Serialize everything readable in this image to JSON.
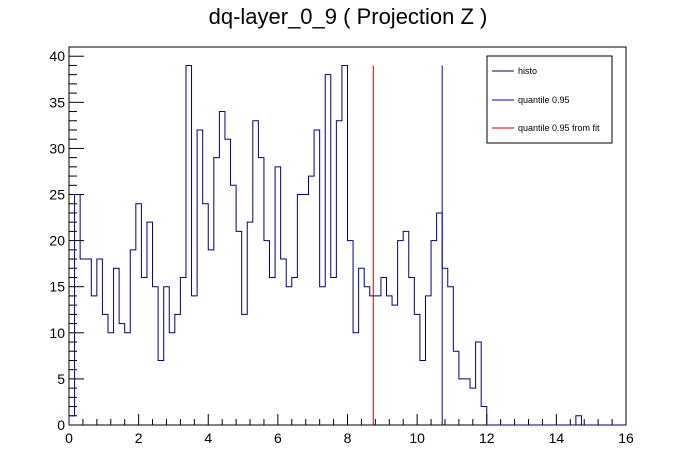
{
  "chart_data": {
    "type": "histogram",
    "title": "dq-layer_0_9 ( Projection Z )",
    "xlabel": "",
    "ylabel": "",
    "xlim": [
      0,
      16
    ],
    "ylim": [
      0,
      41
    ],
    "bin_width": 0.16,
    "x_ticks": [
      0,
      2,
      4,
      6,
      8,
      10,
      12,
      14,
      16
    ],
    "x_tick_labels": [
      "0",
      "2",
      "4",
      "6",
      "8",
      "10",
      "12",
      "14",
      "16"
    ],
    "y_ticks": [
      0,
      5,
      10,
      15,
      20,
      25,
      30,
      35,
      40
    ],
    "y_tick_labels": [
      "0",
      "5",
      "10",
      "15",
      "20",
      "25",
      "30",
      "35",
      "40"
    ],
    "grid": false,
    "legend_position": "top-right",
    "series": [
      {
        "name": "histo",
        "color": "#000080",
        "values": [
          1,
          25,
          18,
          18,
          14,
          18,
          12,
          10,
          17,
          11,
          10,
          19,
          24,
          16,
          22,
          15,
          7,
          15,
          10,
          12,
          16,
          39,
          14,
          32,
          24,
          19,
          29,
          34,
          31,
          26,
          21,
          12,
          22,
          33,
          29,
          20,
          16,
          28,
          18,
          15,
          16,
          25,
          25,
          27,
          32,
          15,
          38,
          16,
          33,
          39,
          20,
          10,
          17,
          15,
          14,
          14,
          16,
          14,
          13,
          20,
          21,
          16,
          12,
          7,
          14,
          20,
          23,
          17,
          15,
          8,
          5,
          5,
          4,
          9,
          2,
          0,
          0,
          0,
          0,
          0,
          0,
          0,
          0,
          0,
          0,
          0,
          0,
          0,
          0,
          0,
          0,
          1,
          0,
          0,
          0,
          0,
          0,
          0,
          0,
          0
        ]
      }
    ],
    "vertical_lines": [
      {
        "name": "quantile 0.95",
        "x": 10.72,
        "y_top": 39,
        "color": "#0000cc"
      },
      {
        "name": "quantile 0.95 from fit",
        "x": 8.74,
        "y_top": 39,
        "color": "#cc0000"
      }
    ]
  }
}
